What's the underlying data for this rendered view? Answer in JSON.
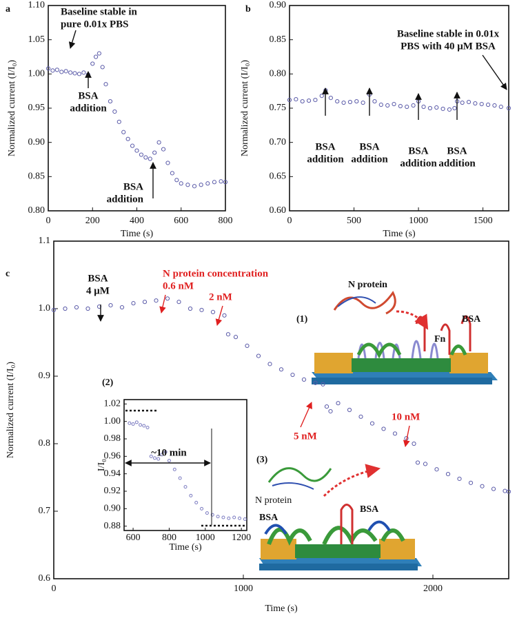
{
  "chart_data": [
    {
      "type": "scatter",
      "panel": "a",
      "xlabel": "Time (s)",
      "ylabel": "Normalized current (I/I₀)",
      "color": "#5a5aa8",
      "x": [
        0,
        20,
        40,
        60,
        80,
        100,
        120,
        140,
        160,
        180,
        200,
        215,
        230,
        245,
        260,
        280,
        300,
        320,
        340,
        360,
        380,
        400,
        420,
        440,
        460,
        480,
        500,
        520,
        540,
        560,
        580,
        600,
        630,
        660,
        690,
        720,
        750,
        780,
        800
      ],
      "values": [
        1.008,
        1.005,
        1.006,
        1.003,
        1.004,
        1.002,
        1.001,
        1.0,
        1.002,
        0.999,
        1.015,
        1.025,
        1.03,
        1.01,
        0.985,
        0.96,
        0.945,
        0.93,
        0.915,
        0.905,
        0.895,
        0.888,
        0.882,
        0.878,
        0.876,
        0.885,
        0.9,
        0.89,
        0.87,
        0.855,
        0.845,
        0.84,
        0.838,
        0.836,
        0.838,
        0.84,
        0.842,
        0.843,
        0.842
      ],
      "xlim": [
        0,
        800
      ],
      "xticks": [
        0,
        200,
        400,
        600,
        800
      ],
      "ylim": [
        0.8,
        1.1
      ],
      "yticks": [
        {
          "value": 0.8,
          "label": "0.80"
        },
        0.85,
        {
          "value": 0.9,
          "label": "0.90"
        },
        0.95,
        {
          "value": 1.0,
          "label": "1.00"
        },
        1.05,
        {
          "value": 1.1,
          "label": "1.10"
        }
      ],
      "annotations": [
        {
          "lines": [
            "Baseline stable in",
            "pure 0.01x PBS"
          ],
          "color": "#111"
        },
        {
          "lines": [
            "BSA",
            "addition"
          ],
          "color": "#111"
        },
        {
          "lines": [
            "BSA",
            "addition"
          ],
          "color": "#111"
        }
      ]
    },
    {
      "type": "scatter",
      "panel": "b",
      "xlabel": "Time (s)",
      "ylabel": "Normalized current (I/I₀)",
      "color": "#5a5aa8",
      "x": [
        0,
        50,
        100,
        150,
        200,
        250,
        280,
        320,
        370,
        420,
        470,
        520,
        570,
        620,
        660,
        710,
        760,
        810,
        860,
        910,
        960,
        1000,
        1040,
        1090,
        1140,
        1190,
        1240,
        1280,
        1300,
        1340,
        1390,
        1440,
        1490,
        1540,
        1590,
        1640,
        1700
      ],
      "values": [
        0.762,
        0.763,
        0.76,
        0.761,
        0.762,
        0.768,
        0.776,
        0.765,
        0.76,
        0.758,
        0.759,
        0.76,
        0.758,
        0.77,
        0.76,
        0.755,
        0.754,
        0.756,
        0.753,
        0.752,
        0.754,
        0.76,
        0.752,
        0.75,
        0.751,
        0.749,
        0.748,
        0.75,
        0.76,
        0.758,
        0.759,
        0.757,
        0.756,
        0.755,
        0.754,
        0.752,
        0.75
      ],
      "xlim": [
        0,
        1700
      ],
      "xticks": [
        0,
        500,
        1000,
        1500
      ],
      "ylim": [
        0.6,
        0.9
      ],
      "yticks": [
        {
          "value": 0.6,
          "label": "0.60"
        },
        0.65,
        {
          "value": 0.7,
          "label": "0.70"
        },
        0.75,
        {
          "value": 0.8,
          "label": "0.80"
        },
        0.85,
        {
          "value": 0.9,
          "label": "0.90"
        }
      ],
      "annotations": [
        {
          "lines": [
            "Baseline stable in 0.01x",
            "PBS with 40 μM BSA"
          ],
          "color": "#111"
        },
        {
          "lines": [
            "BSA",
            "addition"
          ],
          "color": "#111"
        },
        {
          "lines": [
            "BSA",
            "addition"
          ],
          "color": "#111"
        },
        {
          "lines": [
            "BSA",
            "addition"
          ],
          "color": "#111"
        },
        {
          "lines": [
            "BSA",
            "addition"
          ],
          "color": "#111"
        }
      ]
    },
    {
      "type": "scatter",
      "panel": "c",
      "xlabel": "Time (s)",
      "ylabel": "Normalized current (I/I₀)",
      "color": "#5a5aa8",
      "x": [
        0,
        60,
        120,
        180,
        240,
        300,
        360,
        420,
        480,
        540,
        600,
        660,
        720,
        780,
        840,
        900,
        920,
        960,
        1020,
        1080,
        1140,
        1200,
        1260,
        1320,
        1380,
        1420,
        1440,
        1460,
        1500,
        1560,
        1620,
        1680,
        1740,
        1800,
        1860,
        1900,
        1920,
        1960,
        2020,
        2080,
        2140,
        2200,
        2260,
        2320,
        2380,
        2400
      ],
      "values": [
        0.998,
        1.0,
        1.002,
        1.0,
        1.003,
        1.005,
        1.002,
        1.008,
        1.01,
        1.012,
        1.015,
        1.01,
        1.0,
        0.998,
        0.995,
        0.99,
        0.962,
        0.958,
        0.945,
        0.93,
        0.918,
        0.91,
        0.902,
        0.895,
        0.89,
        0.888,
        0.855,
        0.848,
        0.86,
        0.85,
        0.84,
        0.83,
        0.822,
        0.815,
        0.808,
        0.8,
        0.772,
        0.77,
        0.762,
        0.755,
        0.748,
        0.742,
        0.737,
        0.733,
        0.73,
        0.729
      ],
      "xlim": [
        0,
        2400
      ],
      "xticks": [
        0,
        1000,
        2000
      ],
      "ylim": [
        0.6,
        1.1
      ],
      "yticks": [
        0.6,
        0.7,
        0.8,
        0.9,
        {
          "value": 1.0,
          "label": "1.0"
        },
        1.1
      ],
      "annotations": [
        {
          "lines": [
            "BSA",
            "4 μM"
          ],
          "color": "#111"
        },
        {
          "lines": [
            "N protein concentration",
            "0.6 nM"
          ],
          "color": "#e02020"
        },
        {
          "lines": [
            "2 nM"
          ],
          "color": "#e02020"
        },
        {
          "lines": [
            "5 nM"
          ],
          "color": "#e02020"
        },
        {
          "lines": [
            "10 nM"
          ],
          "color": "#e02020"
        }
      ]
    },
    {
      "type": "scatter",
      "panel": "(2)",
      "xlabel": "Time (s)",
      "ylabel": "I/I₀",
      "color": "#7a7ac0",
      "x": [
        580,
        600,
        620,
        640,
        660,
        680,
        700,
        720,
        740,
        760,
        780,
        800,
        830,
        860,
        890,
        920,
        950,
        980,
        1010,
        1040,
        1070,
        1100,
        1130,
        1160,
        1190,
        1220
      ],
      "values": [
        0.998,
        0.997,
        0.999,
        0.996,
        0.995,
        0.993,
        0.96,
        0.958,
        0.957,
        0.962,
        0.965,
        0.955,
        0.945,
        0.935,
        0.925,
        0.915,
        0.907,
        0.9,
        0.895,
        0.893,
        0.891,
        0.89,
        0.889,
        0.89,
        0.889,
        0.888
      ],
      "xlim": [
        550,
        1230
      ],
      "xticks": [
        600,
        800,
        1000,
        1200
      ],
      "ylim": [
        0.875,
        1.025
      ],
      "yticks": [
        0.88,
        {
          "value": 0.9,
          "label": "0.90"
        },
        0.92,
        0.94,
        0.96,
        0.98,
        {
          "value": 1.0,
          "label": "1.00"
        },
        1.02
      ],
      "annotations": [
        {
          "lines": [
            "~10 min"
          ],
          "color": "#111"
        }
      ]
    }
  ],
  "schematics": [
    {
      "labels": [
        "(1)",
        "N protein",
        "Fn",
        "BSA"
      ]
    },
    {
      "labels": [
        "(3)",
        "N protein",
        "BSA",
        "BSA"
      ]
    }
  ]
}
